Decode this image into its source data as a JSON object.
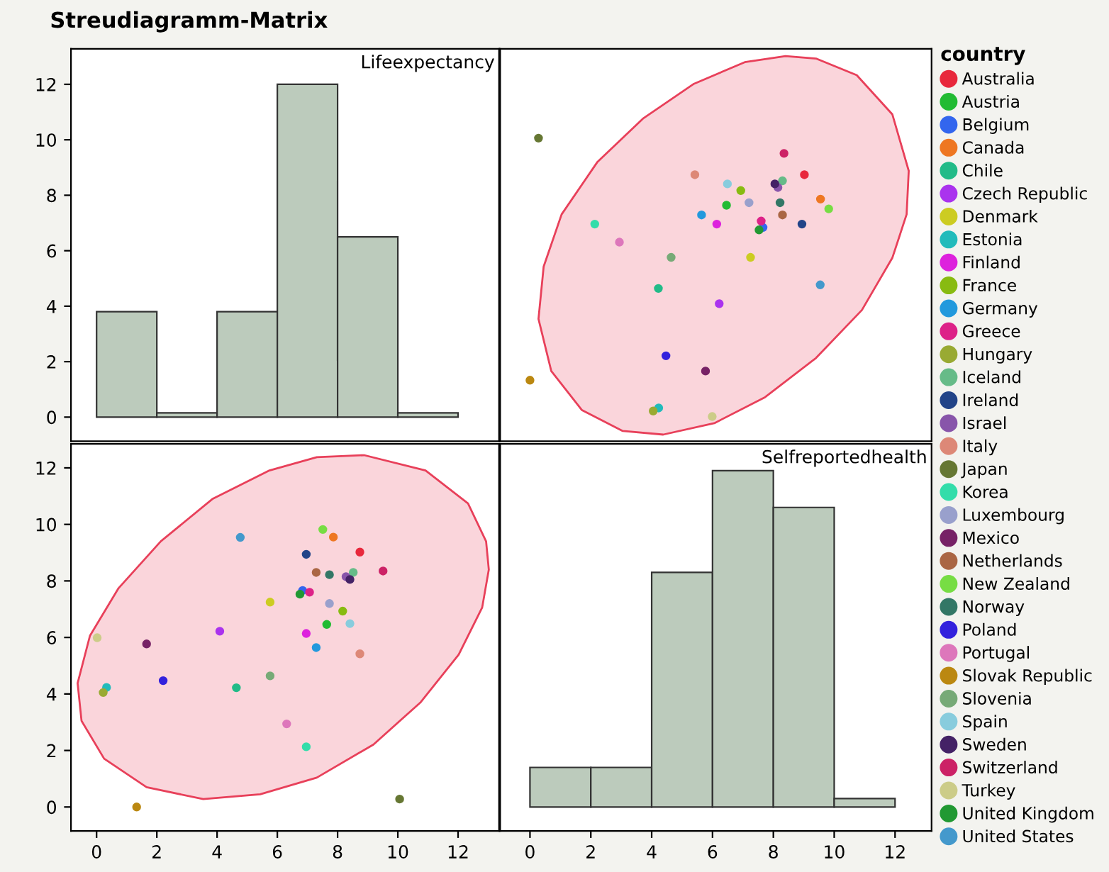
{
  "chart_data": [
    {
      "type": "histogram",
      "title": "Lifeexpectancy",
      "annotations": [
        "Streudiagramm-Matrix"
      ],
      "bins": [
        0,
        2,
        4,
        6,
        8,
        10,
        12
      ],
      "values": [
        3.8,
        0.15,
        3.8,
        12,
        6.5,
        0.15
      ],
      "color": "#bccbbc",
      "xlim": [
        -0.85,
        13.36
      ],
      "ylim": [
        -0.87,
        13.28
      ],
      "yticks": [
        0,
        2,
        4,
        6,
        8,
        10,
        12
      ],
      "tick_labels": "y",
      "grid": false
    },
    {
      "type": "scatter",
      "legend_title": "country",
      "legend": "right",
      "xlim": [
        -0.98,
        13.2
      ],
      "ylim": [
        -0.87,
        13.28
      ],
      "tick_labels": false,
      "grid": false,
      "marker": "circle",
      "series": [
        {
          "type": "area",
          "marker": "none",
          "color": "#e8405a",
          "x": [
            12.45,
            11.91,
            10.74,
            9.4,
            8.4,
            7.06,
            5.39,
            3.71,
            2.21,
            1.04,
            0.45,
            0.28,
            0.7,
            1.71,
            3.05,
            4.38,
            6.06,
            7.73,
            9.4,
            10.91,
            11.91,
            12.38
          ],
          "values": [
            8.88,
            10.92,
            12.33,
            12.93,
            13.02,
            12.8,
            12.02,
            10.76,
            9.19,
            7.31,
            5.43,
            3.54,
            1.66,
            0.25,
            -0.5,
            -0.63,
            -0.22,
            0.72,
            2.13,
            3.86,
            5.74,
            7.31
          ]
        },
        {
          "name": "Australia",
          "color": "#e8283c",
          "x": [
            9.02
          ],
          "values": [
            8.74
          ]
        },
        {
          "name": "Austria",
          "color": "#22bb33",
          "x": [
            6.46
          ],
          "values": [
            7.64
          ]
        },
        {
          "name": "Belgium",
          "color": "#3366ee",
          "x": [
            7.66
          ],
          "values": [
            6.84
          ]
        },
        {
          "name": "Canada",
          "color": "#ee7722",
          "x": [
            9.55
          ],
          "values": [
            7.86
          ]
        },
        {
          "name": "Chile",
          "color": "#22bb88",
          "x": [
            4.22
          ],
          "values": [
            4.64
          ]
        },
        {
          "name": "Czech Republic",
          "color": "#aa33ee",
          "x": [
            6.22
          ],
          "values": [
            4.09
          ]
        },
        {
          "name": "Denmark",
          "color": "#cccc22",
          "x": [
            7.25
          ],
          "values": [
            5.76
          ]
        },
        {
          "name": "Estonia",
          "color": "#22bbbb",
          "x": [
            4.23
          ],
          "values": [
            0.33
          ]
        },
        {
          "name": "Finland",
          "color": "#dd22dd",
          "x": [
            6.14
          ],
          "values": [
            6.96
          ]
        },
        {
          "name": "France",
          "color": "#88bb11",
          "x": [
            6.93
          ],
          "values": [
            8.17
          ]
        },
        {
          "name": "Germany",
          "color": "#2299dd",
          "x": [
            5.64
          ],
          "values": [
            7.29
          ]
        },
        {
          "name": "Greece",
          "color": "#dd2288",
          "x": [
            7.6
          ],
          "values": [
            7.07
          ]
        },
        {
          "name": "Hungary",
          "color": "#99aa33",
          "x": [
            4.05
          ],
          "values": [
            0.22
          ]
        },
        {
          "name": "Iceland",
          "color": "#66bb88",
          "x": [
            8.3
          ],
          "values": [
            8.52
          ]
        },
        {
          "name": "Ireland",
          "color": "#224488",
          "x": [
            8.94
          ],
          "values": [
            6.96
          ]
        },
        {
          "name": "Israel",
          "color": "#8855aa",
          "x": [
            8.15
          ],
          "values": [
            8.28
          ]
        },
        {
          "name": "Italy",
          "color": "#dd8877",
          "x": [
            5.42
          ],
          "values": [
            8.74
          ]
        },
        {
          "name": "Japan",
          "color": "#667733",
          "x": [
            0.28
          ],
          "values": [
            10.06
          ]
        },
        {
          "name": "Korea",
          "color": "#33ddaa",
          "x": [
            2.13
          ],
          "values": [
            6.96
          ]
        },
        {
          "name": "Luxembourg",
          "color": "#99a0cc",
          "x": [
            7.2
          ],
          "values": [
            7.73
          ]
        },
        {
          "name": "Mexico",
          "color": "#772266",
          "x": [
            5.77
          ],
          "values": [
            1.66
          ]
        },
        {
          "name": "Netherlands",
          "color": "#aa6644",
          "x": [
            8.3
          ],
          "values": [
            7.29
          ]
        },
        {
          "name": "New Zealand",
          "color": "#77dd44",
          "x": [
            9.82
          ],
          "values": [
            7.51
          ]
        },
        {
          "name": "Norway",
          "color": "#337766",
          "x": [
            8.22
          ],
          "values": [
            7.73
          ]
        },
        {
          "name": "Poland",
          "color": "#3322dd",
          "x": [
            4.47
          ],
          "values": [
            2.21
          ]
        },
        {
          "name": "Portugal",
          "color": "#dd77bb",
          "x": [
            2.94
          ],
          "values": [
            6.31
          ]
        },
        {
          "name": "Slovak Republic",
          "color": "#bb8811",
          "x": [
            0.0
          ],
          "values": [
            1.33
          ]
        },
        {
          "name": "Slovenia",
          "color": "#77aa77",
          "x": [
            4.64
          ],
          "values": [
            5.76
          ]
        },
        {
          "name": "Spain",
          "color": "#88ccdd",
          "x": [
            6.49
          ],
          "values": [
            8.41
          ]
        },
        {
          "name": "Sweden",
          "color": "#442266",
          "x": [
            8.05
          ],
          "values": [
            8.41
          ]
        },
        {
          "name": "Switzerland",
          "color": "#cc2266",
          "x": [
            8.35
          ],
          "values": [
            9.51
          ]
        },
        {
          "name": "Turkey",
          "color": "#cccc88",
          "x": [
            5.99
          ],
          "values": [
            0.02
          ]
        },
        {
          "name": "United Kingdom",
          "color": "#229933",
          "x": [
            7.53
          ],
          "values": [
            6.75
          ]
        },
        {
          "name": "United States",
          "color": "#4499cc",
          "x": [
            9.54
          ],
          "values": [
            4.77
          ]
        }
      ]
    },
    {
      "type": "scatter",
      "xlim": [
        -0.85,
        13.36
      ],
      "ylim": [
        -0.85,
        12.85
      ],
      "xticks": [
        0,
        2,
        4,
        6,
        8,
        10,
        12
      ],
      "yticks": [
        0,
        2,
        4,
        6,
        8,
        10,
        12
      ],
      "grid": false,
      "marker": "circle",
      "series": [
        {
          "type": "area",
          "marker": "none",
          "color": "#e8405a",
          "x": [
            8.88,
            10.92,
            12.33,
            12.93,
            13.02,
            12.8,
            12.02,
            10.76,
            9.19,
            7.31,
            5.43,
            3.54,
            1.66,
            0.25,
            -0.5,
            -0.63,
            -0.22,
            0.72,
            2.13,
            3.86,
            5.74,
            7.31
          ],
          "values": [
            12.45,
            11.91,
            10.74,
            9.4,
            8.4,
            7.06,
            5.39,
            3.71,
            2.21,
            1.04,
            0.45,
            0.28,
            0.7,
            1.71,
            3.05,
            4.38,
            6.06,
            7.73,
            9.4,
            10.91,
            11.91,
            12.38
          ]
        },
        {
          "color": "#e8283c",
          "x": [
            8.74
          ],
          "values": [
            9.02
          ]
        },
        {
          "color": "#22bb33",
          "x": [
            7.64
          ],
          "values": [
            6.46
          ]
        },
        {
          "color": "#3366ee",
          "x": [
            6.84
          ],
          "values": [
            7.66
          ]
        },
        {
          "color": "#ee7722",
          "x": [
            7.86
          ],
          "values": [
            9.55
          ]
        },
        {
          "color": "#22bb88",
          "x": [
            4.64
          ],
          "values": [
            4.22
          ]
        },
        {
          "color": "#aa33ee",
          "x": [
            4.09
          ],
          "values": [
            6.22
          ]
        },
        {
          "color": "#cccc22",
          "x": [
            5.76
          ],
          "values": [
            7.25
          ]
        },
        {
          "color": "#22bbbb",
          "x": [
            0.33
          ],
          "values": [
            4.23
          ]
        },
        {
          "color": "#dd22dd",
          "x": [
            6.96
          ],
          "values": [
            6.14
          ]
        },
        {
          "color": "#88bb11",
          "x": [
            8.17
          ],
          "values": [
            6.93
          ]
        },
        {
          "color": "#2299dd",
          "x": [
            7.29
          ],
          "values": [
            5.64
          ]
        },
        {
          "color": "#dd2288",
          "x": [
            7.07
          ],
          "values": [
            7.6
          ]
        },
        {
          "color": "#99aa33",
          "x": [
            0.22
          ],
          "values": [
            4.05
          ]
        },
        {
          "color": "#66bb88",
          "x": [
            8.52
          ],
          "values": [
            8.3
          ]
        },
        {
          "color": "#224488",
          "x": [
            6.96
          ],
          "values": [
            8.94
          ]
        },
        {
          "color": "#8855aa",
          "x": [
            8.28
          ],
          "values": [
            8.15
          ]
        },
        {
          "color": "#dd8877",
          "x": [
            8.74
          ],
          "values": [
            5.42
          ]
        },
        {
          "color": "#667733",
          "x": [
            10.06
          ],
          "values": [
            0.28
          ]
        },
        {
          "color": "#33ddaa",
          "x": [
            6.96
          ],
          "values": [
            2.13
          ]
        },
        {
          "color": "#99a0cc",
          "x": [
            7.73
          ],
          "values": [
            7.2
          ]
        },
        {
          "color": "#772266",
          "x": [
            1.66
          ],
          "values": [
            5.77
          ]
        },
        {
          "color": "#aa6644",
          "x": [
            7.29
          ],
          "values": [
            8.3
          ]
        },
        {
          "color": "#77dd44",
          "x": [
            7.51
          ],
          "values": [
            9.82
          ]
        },
        {
          "color": "#337766",
          "x": [
            7.73
          ],
          "values": [
            8.22
          ]
        },
        {
          "color": "#3322dd",
          "x": [
            2.21
          ],
          "values": [
            4.47
          ]
        },
        {
          "color": "#dd77bb",
          "x": [
            6.31
          ],
          "values": [
            2.94
          ]
        },
        {
          "color": "#bb8811",
          "x": [
            1.33
          ],
          "values": [
            0.0
          ]
        },
        {
          "color": "#77aa77",
          "x": [
            5.76
          ],
          "values": [
            4.64
          ]
        },
        {
          "color": "#88ccdd",
          "x": [
            8.41
          ],
          "values": [
            6.49
          ]
        },
        {
          "color": "#442266",
          "x": [
            8.41
          ],
          "values": [
            8.05
          ]
        },
        {
          "color": "#cc2266",
          "x": [
            9.51
          ],
          "values": [
            8.35
          ]
        },
        {
          "color": "#cccc88",
          "x": [
            0.02
          ],
          "values": [
            5.99
          ]
        },
        {
          "color": "#229933",
          "x": [
            6.75
          ],
          "values": [
            7.53
          ]
        },
        {
          "color": "#4499cc",
          "x": [
            4.77
          ],
          "values": [
            9.54
          ]
        }
      ]
    },
    {
      "type": "histogram",
      "title": "Selfreportedhealth",
      "bins": [
        0,
        2,
        4,
        6,
        8,
        10,
        12
      ],
      "values": [
        1.4,
        1.4,
        8.3,
        11.9,
        10.6,
        0.3
      ],
      "color": "#bccbbc",
      "xlim": [
        -0.98,
        13.2
      ],
      "ylim": [
        -0.85,
        12.85
      ],
      "xticks": [
        0,
        2,
        4,
        6,
        8,
        10,
        12
      ],
      "tick_labels": "x",
      "grid": false
    }
  ]
}
